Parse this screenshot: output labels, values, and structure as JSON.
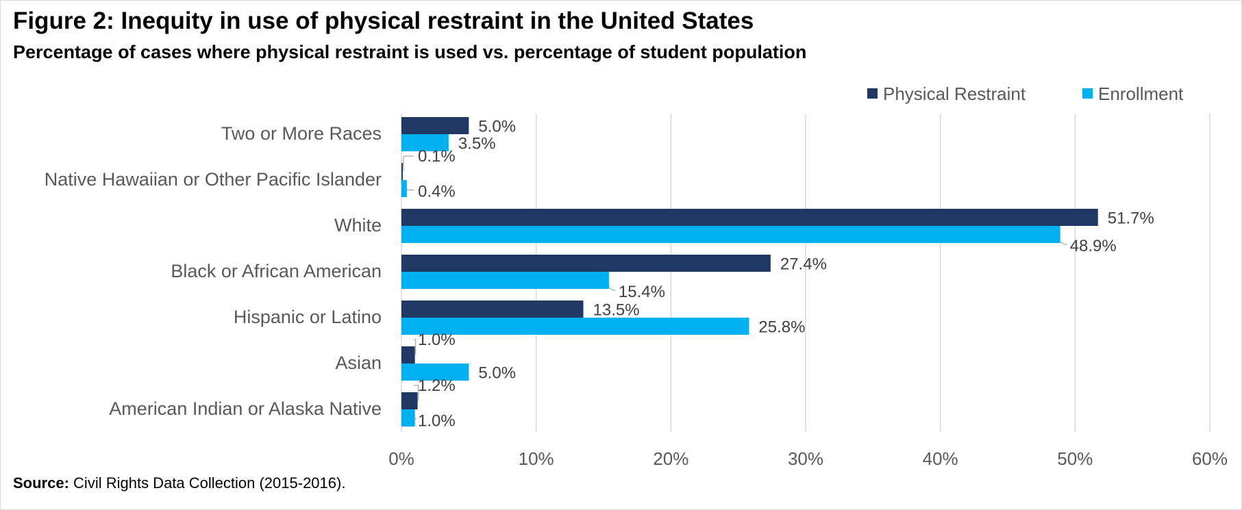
{
  "title": "Figure 2: Inequity in use of physical restraint in the United States",
  "subtitle": "Percentage of cases where physical restraint is used vs. percentage of student population",
  "source": {
    "label": "Source:",
    "text": "Civil Rights Data Collection (2015-2016)."
  },
  "colors": {
    "physical_restraint": "#203864",
    "enrollment": "#00b0f0",
    "gridline": "#d9d9d9",
    "axis_text": "#595959",
    "label_text": "#404040"
  },
  "chart_data": {
    "type": "bar",
    "orientation": "horizontal",
    "categories": [
      "Two or More Races",
      "Native Hawaiian or Other Pacific Islander",
      "White",
      "Black or African American",
      "Hispanic or Latino",
      "Asian",
      "American Indian or Alaska Native"
    ],
    "series": [
      {
        "name": "Physical Restraint",
        "values": [
          5.0,
          0.1,
          51.7,
          27.4,
          13.5,
          1.0,
          1.2
        ],
        "labels": [
          "5.0%",
          "0.1%",
          "51.7%",
          "27.4%",
          "13.5%",
          "1.0%",
          "1.2%"
        ]
      },
      {
        "name": "Enrollment",
        "values": [
          3.5,
          0.4,
          48.9,
          15.4,
          25.8,
          5.0,
          1.0
        ],
        "labels": [
          "3.5%",
          "0.4%",
          "48.9%",
          "15.4%",
          "25.8%",
          "5.0%",
          "1.0%"
        ]
      }
    ],
    "xlim": [
      0,
      60
    ],
    "xticks": [
      0,
      10,
      20,
      30,
      40,
      50,
      60
    ],
    "xtick_labels": [
      "0%",
      "10%",
      "20%",
      "30%",
      "40%",
      "50%",
      "60%"
    ],
    "grid": true,
    "legend_position": "top-right"
  }
}
